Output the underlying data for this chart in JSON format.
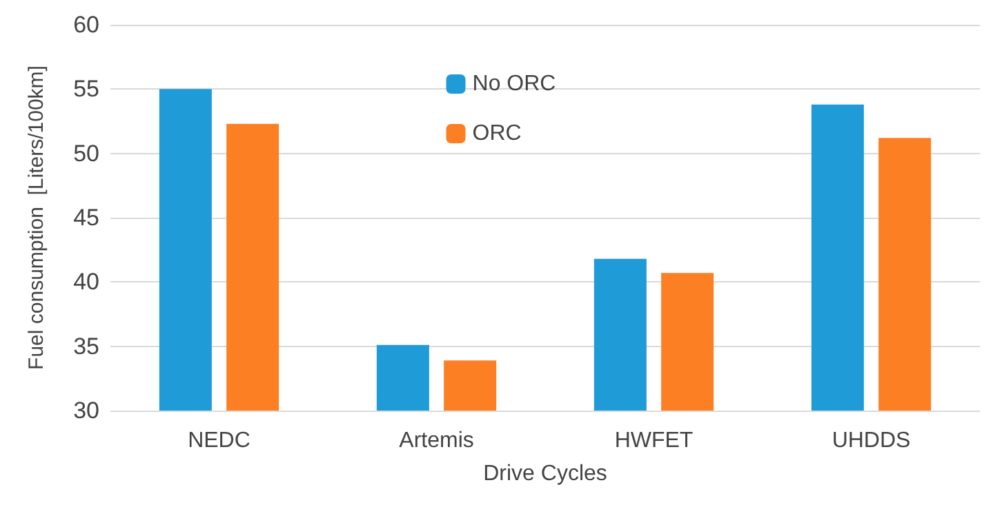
{
  "chart_data": {
    "type": "bar",
    "xlabel": "Drive Cycles",
    "ylabel": "Fuel consumption  [Liters/100km]",
    "categories": [
      "NEDC",
      "Artemis",
      "HWFET",
      "UHDDS"
    ],
    "series": [
      {
        "name": "No ORC",
        "color": "#1f9bd7",
        "values": [
          55.0,
          35.1,
          41.8,
          53.8
        ]
      },
      {
        "name": "ORC",
        "color": "#fd7f23",
        "values": [
          52.3,
          33.9,
          40.7,
          51.2
        ]
      }
    ],
    "ylim": [
      30,
      60
    ],
    "yticks": [
      30,
      35,
      40,
      45,
      50,
      55,
      60
    ],
    "grid": "y",
    "legend": "top"
  }
}
